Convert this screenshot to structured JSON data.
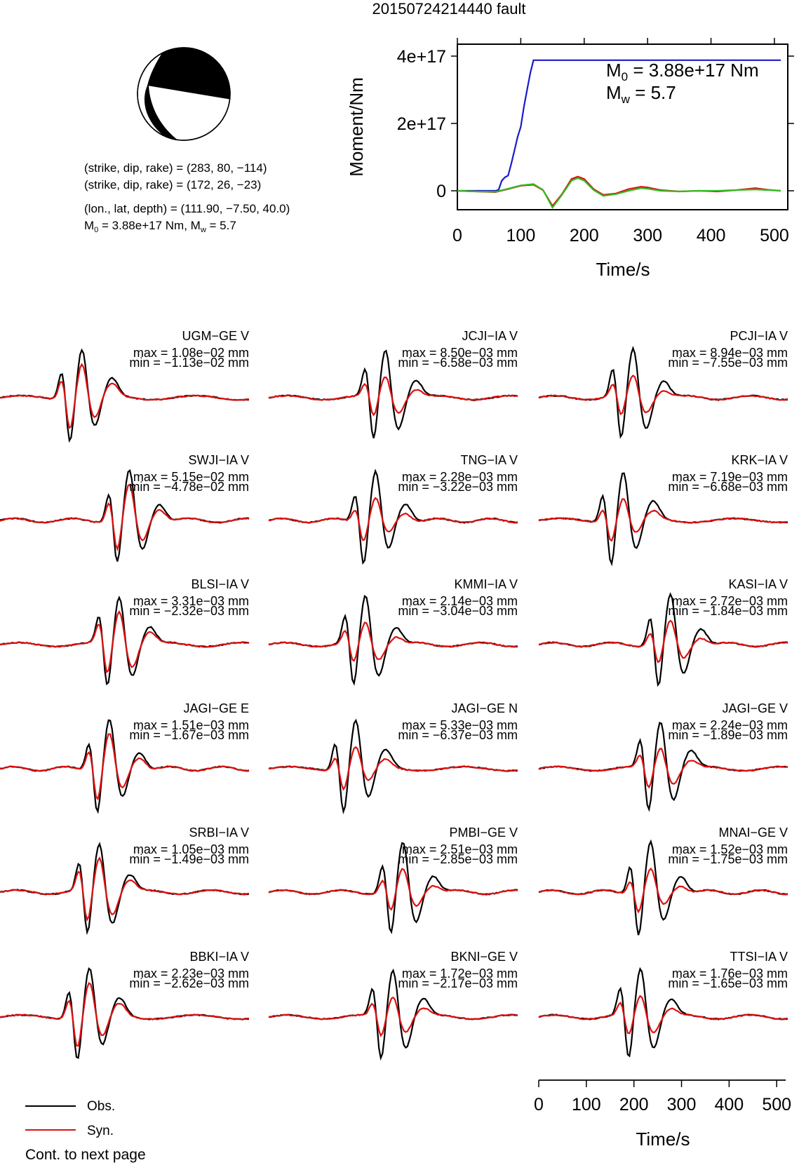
{
  "title": "20150724214440 fault",
  "mechanism": {
    "line1": "(strike, dip, rake) = (283, 80, −114)",
    "line2": "(strike, dip, rake) = (172, 26, −23)",
    "line3": "(lon., lat, depth) = (111.90, −7.50, 40.0)",
    "line4_prefix": "M",
    "line4_sub": "0",
    "line4_mid": " = 3.88e+17 Nm, M",
    "line4_sub2": "w",
    "line4_suffix": " = 5.7"
  },
  "moment_chart": {
    "type": "line",
    "xlabel": "Time/s",
    "ylabel": "Moment/Nm",
    "xlim": [
      0,
      510
    ],
    "ylim": [
      -30000000000000000,
      420000000000000000
    ],
    "xticks": [
      0,
      100,
      200,
      300,
      400,
      500
    ],
    "xtick_labels": [
      "0",
      "100",
      "200",
      "300",
      "400",
      "500"
    ],
    "yticks": [
      0,
      200000000000000000,
      400000000000000000
    ],
    "ytick_labels": [
      "0",
      "2e+17",
      "4e+17"
    ],
    "annotation_m0_prefix": "M",
    "annotation_m0_sub": "0",
    "annotation_m0_suffix": " = 3.88e+17 Nm",
    "annotation_mw_prefix": "M",
    "annotation_mw_sub": "w",
    "annotation_mw_suffix": " = 5.7",
    "series": [
      {
        "color": "#1a1acc",
        "x": [
          0,
          60,
          65,
          70,
          75,
          80,
          85,
          90,
          95,
          100,
          105,
          110,
          115,
          120,
          510
        ],
        "y": [
          0,
          0,
          3000000000000000.0,
          3e+16,
          4e+16,
          4.5e+16,
          8e+16,
          1.2e+17,
          1.6e+17,
          1.9e+17,
          2.5e+17,
          3e+17,
          3.5e+17,
          3.88e+17,
          3.88e+17
        ]
      },
      {
        "color": "#dd1111",
        "x": [
          0,
          30,
          60,
          80,
          100,
          120,
          135,
          150,
          165,
          180,
          190,
          200,
          215,
          230,
          250,
          270,
          290,
          300,
          320,
          350,
          380,
          410,
          440,
          470,
          490,
          510
        ],
        "y": [
          0,
          -2000000000000000.0,
          -4000000000000000.0,
          5000000000000000.0,
          1.5e+16,
          1.8e+16,
          2000000000000000.0,
          -4.5e+16,
          -1e+16,
          3.5e+16,
          4.2e+16,
          3.5e+16,
          5000000000000000.0,
          -1.2e+16,
          -8000000000000000.0,
          5000000000000000.0,
          1.2e+16,
          1e+16,
          2000000000000000.0,
          -2000000000000000.0,
          0.0,
          -2000000000000000.0,
          2000000000000000.0,
          8000000000000000.0,
          3000000000000000.0,
          0.0
        ]
      },
      {
        "color": "#33bb22",
        "x": [
          0,
          30,
          60,
          80,
          100,
          120,
          135,
          150,
          165,
          180,
          190,
          200,
          215,
          230,
          250,
          270,
          290,
          300,
          320,
          350,
          380,
          410,
          440,
          470,
          490,
          510
        ],
        "y": [
          0,
          -2000000000000000.0,
          -3000000000000000.0,
          6000000000000000.0,
          1.6e+16,
          2e+16,
          3000000000000000.0,
          -5e+16,
          -1.2e+16,
          3e+16,
          3.8e+16,
          3e+16,
          2000000000000000.0,
          -1.5e+16,
          -1e+16,
          0.0,
          8000000000000000.0,
          6000000000000000.0,
          0.0,
          -2000000000000000.0,
          0.0,
          0.0,
          2000000000000000.0,
          4000000000000000.0,
          2000000000000000.0,
          0.0
        ]
      }
    ]
  },
  "waveforms": [
    {
      "name": "UGM−GE V",
      "max": "max = 1.08e−02 mm",
      "min": "min = −1.13e−02 mm"
    },
    {
      "name": "JCJI−IA V",
      "max": "max = 8.50e−03 mm",
      "min": "min = −6.58e−03 mm"
    },
    {
      "name": "PCJI−IA V",
      "max": "max = 8.94e−03 mm",
      "min": "min = −7.55e−03 mm"
    },
    {
      "name": "SWJI−IA V",
      "max": "max = 5.15e−02 mm",
      "min": "min = −4.78e−02 mm"
    },
    {
      "name": "TNG−IA V",
      "max": "max = 2.28e−03 mm",
      "min": "min = −3.22e−03 mm"
    },
    {
      "name": "KRK−IA V",
      "max": "max = 7.19e−03 mm",
      "min": "min = −6.68e−03 mm"
    },
    {
      "name": "BLSI−IA V",
      "max": "max = 3.31e−03 mm",
      "min": "min = −2.32e−03 mm"
    },
    {
      "name": "KMMI−IA V",
      "max": "max = 2.14e−03 mm",
      "min": "min = −3.04e−03 mm"
    },
    {
      "name": "KASI−IA V",
      "max": "max = 2.72e−03 mm",
      "min": "min = −1.84e−03 mm"
    },
    {
      "name": "JAGI−GE E",
      "max": "max = 1.51e−03 mm",
      "min": "min = −1.67e−03 mm"
    },
    {
      "name": "JAGI−GE N",
      "max": "max = 5.33e−03 mm",
      "min": "min = −6.37e−03 mm"
    },
    {
      "name": "JAGI−GE V",
      "max": "max = 2.24e−03 mm",
      "min": "min = −1.89e−03 mm"
    },
    {
      "name": "SRBI−IA V",
      "max": "max = 1.05e−03 mm",
      "min": "min = −1.49e−03 mm"
    },
    {
      "name": "PMBI−GE V",
      "max": "max = 2.51e−03 mm",
      "min": "min = −2.85e−03 mm"
    },
    {
      "name": "MNAI−GE V",
      "max": "max = 1.52e−03 mm",
      "min": "min = −1.75e−03 mm"
    },
    {
      "name": "BBKI−IA V",
      "max": "max = 2.23e−03 mm",
      "min": "min = −2.62e−03 mm"
    },
    {
      "name": "BKNI−GE V",
      "max": "max = 1.72e−03 mm",
      "min": "min = −2.17e−03 mm"
    },
    {
      "name": "TTSI−IA V",
      "max": "max = 1.76e−03 mm",
      "min": "min = −1.65e−03 mm"
    }
  ],
  "time_axis": {
    "xlabel": "Time/s",
    "xlim": [
      0,
      510
    ],
    "xticks": [
      0,
      100,
      200,
      300,
      400,
      500
    ],
    "xtick_labels": [
      "0",
      "100",
      "200",
      "300",
      "400",
      "500"
    ]
  },
  "legend": {
    "obs_label": "Obs.",
    "syn_label": "Syn.",
    "obs_color": "#000000",
    "syn_color": "#dd1111"
  },
  "footer": "Cont. to next page"
}
